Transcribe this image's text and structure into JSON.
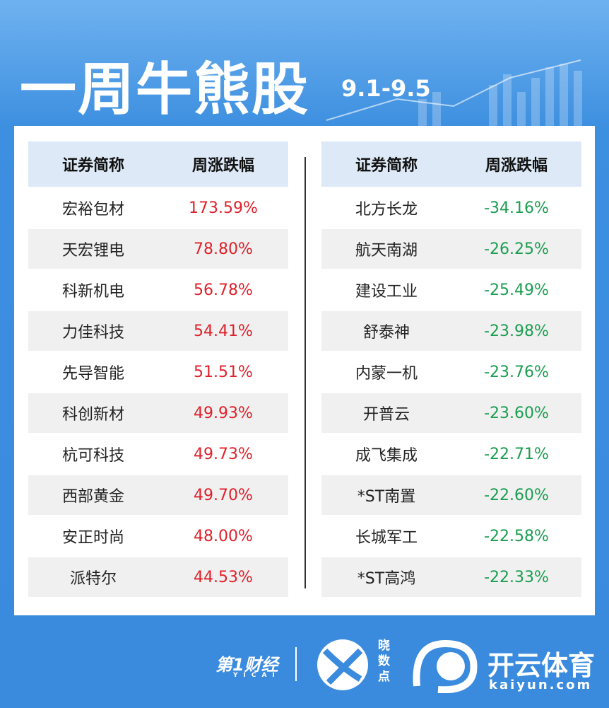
{
  "header": {
    "title": "一周牛熊股",
    "date": "9.1-9.5"
  },
  "tables": [
    {
      "columns": [
        "证券简称",
        "周涨跌幅"
      ],
      "rows": [
        [
          "宏裕包材",
          "173.59%"
        ],
        [
          "天宏锂电",
          "78.80%"
        ],
        [
          "科新机电",
          "56.78%"
        ],
        [
          "力佳科技",
          "54.41%"
        ],
        [
          "先导智能",
          "51.51%"
        ],
        [
          "科创新材",
          "49.93%"
        ],
        [
          "杭可科技",
          "49.73%"
        ],
        [
          "西部黄金",
          "49.70%"
        ],
        [
          "安正时尚",
          "48.00%"
        ],
        [
          "派特尔",
          "44.53%"
        ]
      ],
      "color": "#e0202a"
    },
    {
      "columns": [
        "证券简称",
        "周涨跌幅"
      ],
      "rows": [
        [
          "北方长龙",
          "-34.16%"
        ],
        [
          "航天南湖",
          "-26.25%"
        ],
        [
          "建设工业",
          "-25.49%"
        ],
        [
          "舒泰神",
          "-23.98%"
        ],
        [
          "内蒙一机",
          "-23.76%"
        ],
        [
          "开普云",
          "-23.60%"
        ],
        [
          "成飞集成",
          "-22.71%"
        ],
        [
          "*ST南置",
          "-22.60%"
        ],
        [
          "长城军工",
          "-22.58%"
        ],
        [
          "*ST高鸿",
          "-22.33%"
        ]
      ],
      "color": "#1a9e50"
    }
  ],
  "footer": {
    "brand": "第1财经",
    "brand_sub": "YICAI",
    "app": "晓数点",
    "logo": "开云体育",
    "url": "kaiyun.com"
  }
}
